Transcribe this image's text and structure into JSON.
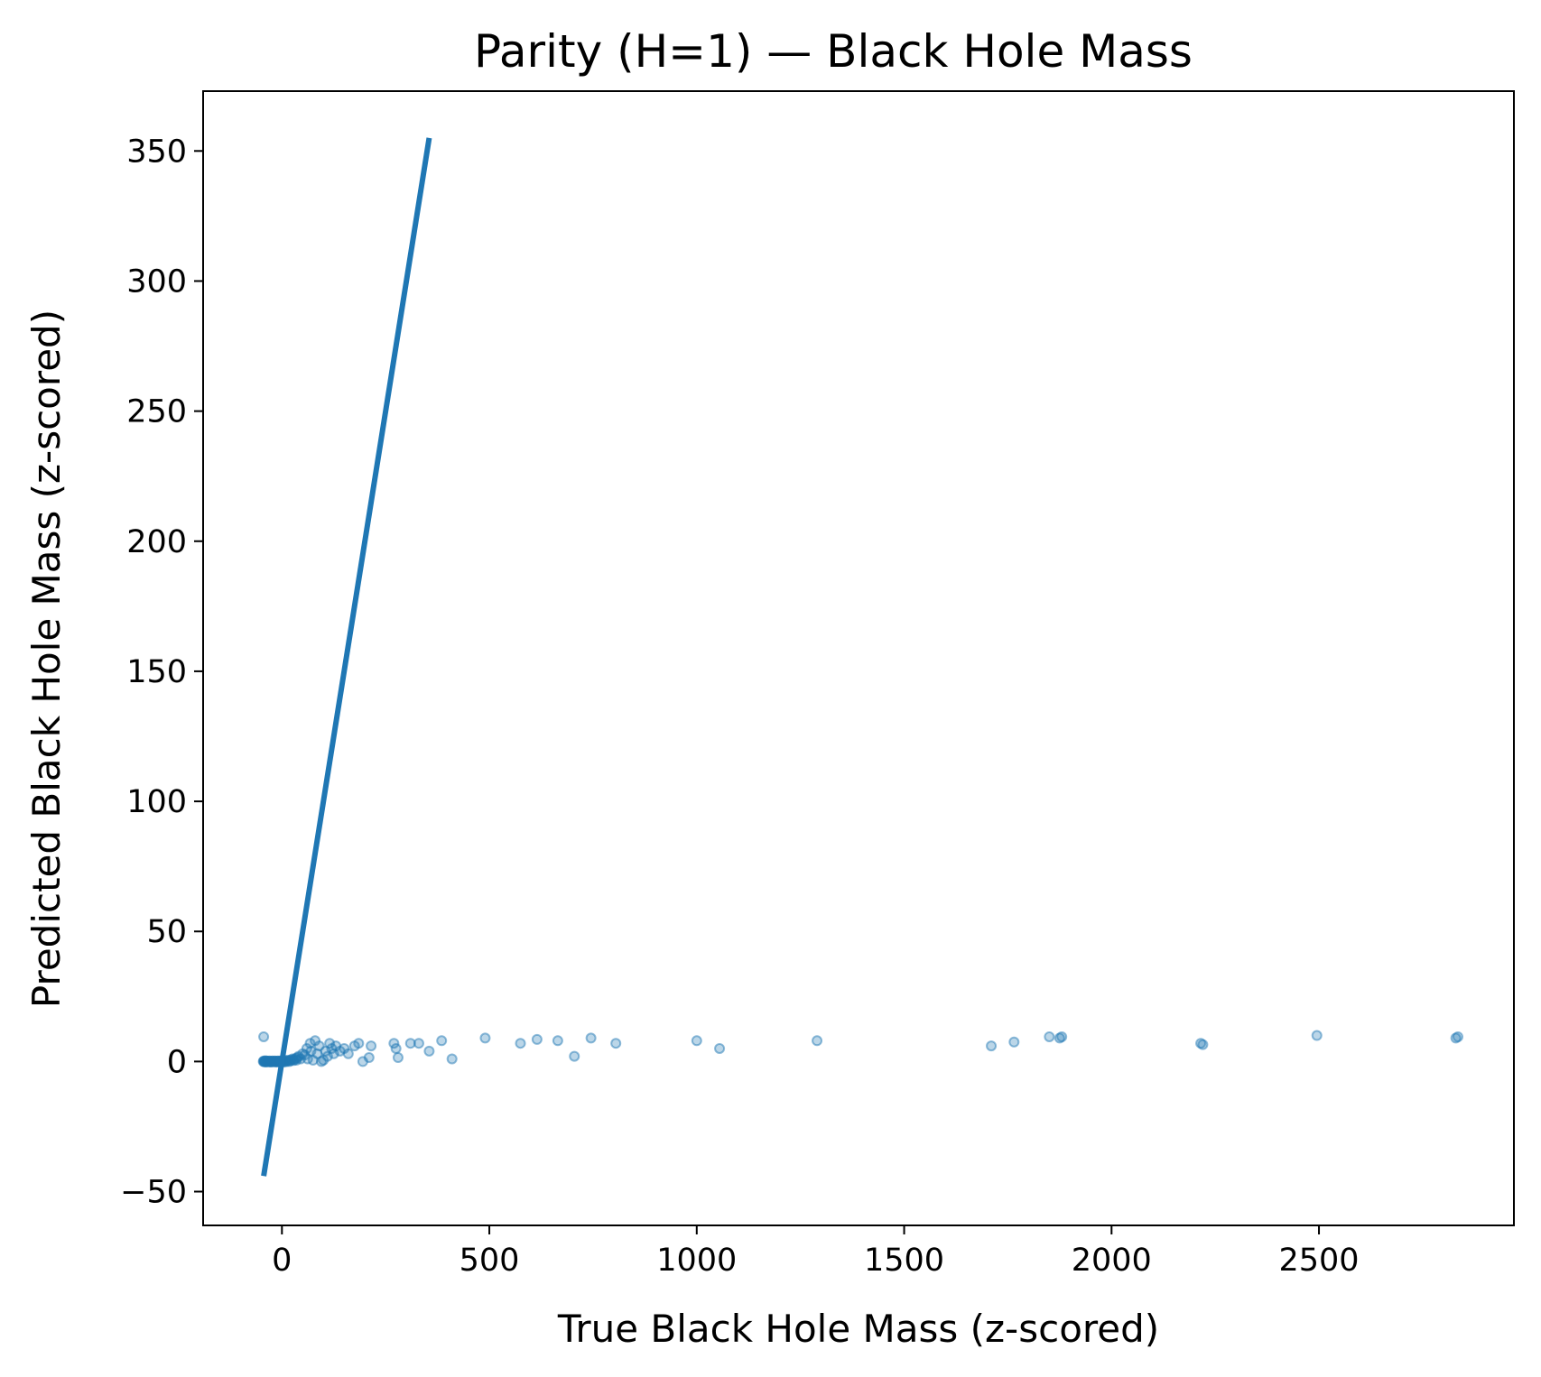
{
  "chart_data": {
    "type": "scatter",
    "title": "Parity (H=1) — Black Hole Mass",
    "xlabel": "True Black Hole Mass (z-scored)",
    "ylabel": "Predicted Black Hole Mass (z-scored)",
    "xlim": [
      -190,
      2970
    ],
    "ylim": [
      -63,
      373
    ],
    "xticks": [
      0,
      500,
      1000,
      1500,
      2000,
      2500
    ],
    "yticks": [
      -50,
      0,
      50,
      100,
      150,
      200,
      250,
      300,
      350
    ],
    "xtick_labels": [
      "0",
      "500",
      "1000",
      "1500",
      "2000",
      "2500"
    ],
    "ytick_labels": [
      "−50",
      "0",
      "50",
      "100",
      "150",
      "200",
      "250",
      "300",
      "350"
    ],
    "grid": false,
    "color": "#1f77b4",
    "series": [
      {
        "type": "scatter",
        "x": [
          -45,
          -44,
          -43,
          -42,
          -41,
          -40,
          -39,
          -38,
          -37,
          -36,
          -35,
          -34,
          -33,
          -32,
          -31,
          -30,
          -29,
          -28,
          -27,
          -26,
          -25,
          -24,
          -23,
          -22,
          -21,
          -20,
          -19,
          -18,
          -17,
          -16,
          -15,
          -14,
          -13,
          -12,
          -11,
          -10,
          -9,
          -8,
          -7,
          -6,
          -5,
          -4,
          -3,
          -2,
          -1,
          0,
          2,
          4,
          6,
          8,
          10,
          12,
          15,
          18,
          20,
          22,
          25,
          28,
          30,
          33,
          35,
          38,
          40,
          45,
          -44,
          50,
          55,
          60,
          62,
          68,
          70,
          75,
          80,
          85,
          90,
          95,
          100,
          105,
          110,
          115,
          120,
          125,
          130,
          140,
          150,
          160,
          175,
          185,
          195,
          210,
          215,
          270,
          275,
          280,
          310,
          330,
          355,
          385,
          410,
          490,
          575,
          615,
          665,
          705,
          745,
          805,
          1000,
          1055,
          1290,
          1710,
          1765,
          1850,
          1875,
          1880,
          2215,
          2220,
          2495,
          2830,
          2835
        ],
        "y": [
          0,
          0.2,
          -0.1,
          0.1,
          0,
          0.3,
          -0.2,
          0.1,
          0,
          0.2,
          -0.1,
          0,
          0.1,
          0,
          -0.1,
          0.2,
          0,
          0.1,
          -0.2,
          0,
          0.1,
          0,
          0.2,
          -0.1,
          0,
          0.1,
          0,
          -0.1,
          0.2,
          0,
          0.1,
          0,
          -0.2,
          0.1,
          0,
          0.2,
          0,
          -0.1,
          0.1,
          0,
          0.2,
          0,
          -0.1,
          0.1,
          0,
          0,
          0.3,
          -0.2,
          0.1,
          0.4,
          -0.1,
          0.2,
          0.5,
          0,
          0.3,
          0.6,
          1,
          0.4,
          0.8,
          1.2,
          0.5,
          1.5,
          2,
          1,
          9.5,
          3,
          2.5,
          5,
          1,
          7,
          4,
          0.5,
          8,
          3,
          6,
          0,
          0.5,
          4,
          2,
          7,
          5,
          3,
          6,
          4,
          5,
          3,
          6,
          7,
          0,
          1.5,
          6,
          7,
          5,
          1.5,
          7,
          7,
          4,
          8,
          1,
          9,
          7,
          8.5,
          8,
          2,
          9,
          7,
          8,
          5,
          8,
          6,
          7.5,
          9.5,
          9,
          9.5,
          7,
          6.5,
          10,
          9,
          9.5
        ]
      },
      {
        "type": "line",
        "name": "",
        "x": [
          -44,
          355
        ],
        "y": [
          -44,
          355
        ]
      }
    ]
  }
}
